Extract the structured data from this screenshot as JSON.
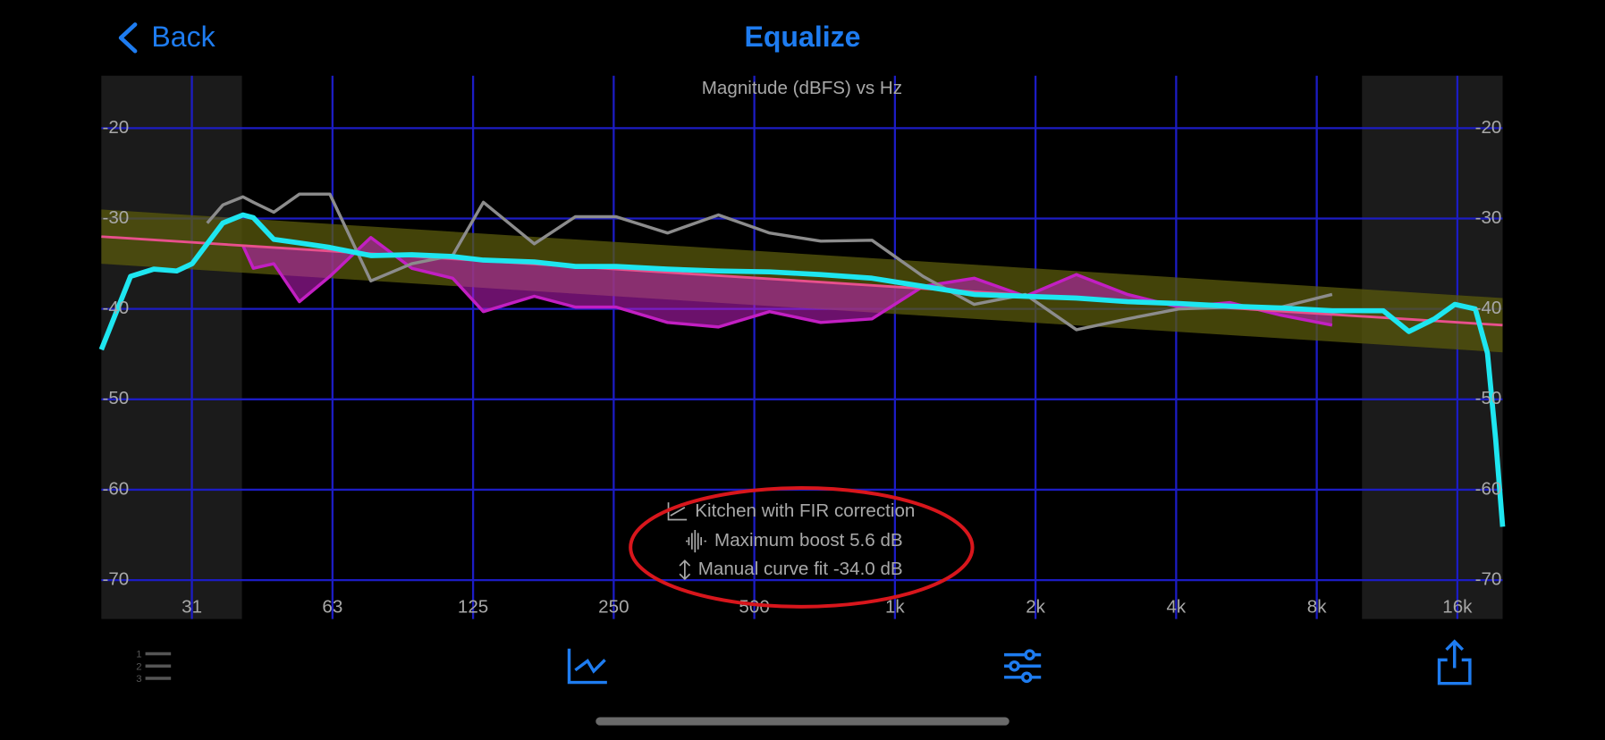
{
  "header": {
    "back": "Back",
    "title": "Equalize"
  },
  "chart_data": {
    "type": "line",
    "title": "Magnitude (dBFS) vs Hz",
    "xscale": "log",
    "xlim": [
      20,
      20000
    ],
    "ylim": [
      -74.3,
      -14.2
    ],
    "xticks": [
      {
        "value": 31.25,
        "label": "31"
      },
      {
        "value": 62.5,
        "label": "63"
      },
      125,
      250,
      500,
      {
        "value": 1000,
        "label": "1k"
      },
      {
        "value": 2000,
        "label": "2k"
      },
      {
        "value": 4000,
        "label": "4k"
      },
      {
        "value": 8000,
        "label": "8k"
      },
      {
        "value": 16000,
        "label": "16k"
      }
    ],
    "yticks": [
      -20,
      -30,
      -40,
      -50,
      -60,
      -70
    ],
    "grid": true,
    "shaded_ranges": [
      [
        20,
        40
      ],
      [
        10000,
        20000
      ]
    ],
    "target": {
      "x": [
        20,
        20000
      ],
      "values": [
        -32.0,
        -41.8
      ],
      "color": "#e8508c",
      "tolerance": 3,
      "band_color": "#5a5a0c"
    },
    "x": [
      20,
      23.1,
      25.9,
      29,
      31.3,
      33.7,
      36.4,
      40.2,
      42.3,
      46.8,
      53.1,
      61.7,
      75.5,
      92.4,
      113,
      131.5,
      169,
      207,
      253,
      326,
      419,
      539,
      694,
      893,
      1149,
      1478,
      1902,
      2447,
      3149,
      4052,
      5212,
      6708,
      8631,
      11105,
      12600,
      14290,
      15800,
      17480,
      18560,
      19330,
      20000
    ],
    "series": [
      {
        "color": "#c21fc2",
        "fill_to_target": true,
        "values": [
          null,
          null,
          null,
          null,
          null,
          null,
          null,
          -33.0,
          -35.5,
          -35.0,
          -39.2,
          -36.4,
          -32.1,
          -35.5,
          -36.6,
          -40.3,
          -38.6,
          -39.8,
          -39.8,
          -41.5,
          -42.0,
          -40.3,
          -41.5,
          -41.1,
          -37.5,
          -36.6,
          -38.6,
          -36.2,
          -38.4,
          -39.8,
          -39.3,
          -40.7,
          -41.8,
          null,
          null,
          null,
          null,
          null,
          null,
          null,
          null
        ]
      },
      {
        "color": "#8c8c8c",
        "values": [
          null,
          null,
          null,
          null,
          null,
          -30.5,
          -28.5,
          -27.6,
          -28.2,
          -29.3,
          -27.3,
          -27.3,
          -36.9,
          -35.0,
          -34.1,
          -28.2,
          -32.8,
          -29.8,
          -29.8,
          -31.6,
          -29.6,
          -31.6,
          -32.5,
          -32.4,
          -36.4,
          -39.5,
          -38.4,
          -42.3,
          -41.1,
          -40.0,
          -39.8,
          -39.8,
          -38.4,
          null,
          null,
          null,
          null,
          null,
          null,
          null,
          null
        ]
      },
      {
        "color": "#1ee6f0",
        "values": [
          -44.5,
          -36.4,
          -35.6,
          -35.8,
          -35.0,
          -32.8,
          -30.5,
          -29.6,
          -29.9,
          -32.3,
          -32.7,
          -33.2,
          -34.1,
          -34.0,
          -34.2,
          -34.6,
          -34.8,
          -35.3,
          -35.3,
          -35.6,
          -35.8,
          -35.9,
          -36.2,
          -36.6,
          -37.5,
          -38.4,
          -38.6,
          -38.8,
          -39.2,
          -39.4,
          -39.7,
          -39.9,
          -40.2,
          -40.2,
          -42.5,
          -41.1,
          -39.5,
          -40.0,
          -44.9,
          -54.5,
          -64.1
        ]
      }
    ]
  },
  "annotations": [
    "Kitchen with FIR correction",
    "Maximum boost 5.6 dB",
    "Manual curve fit -34.0 dB"
  ]
}
